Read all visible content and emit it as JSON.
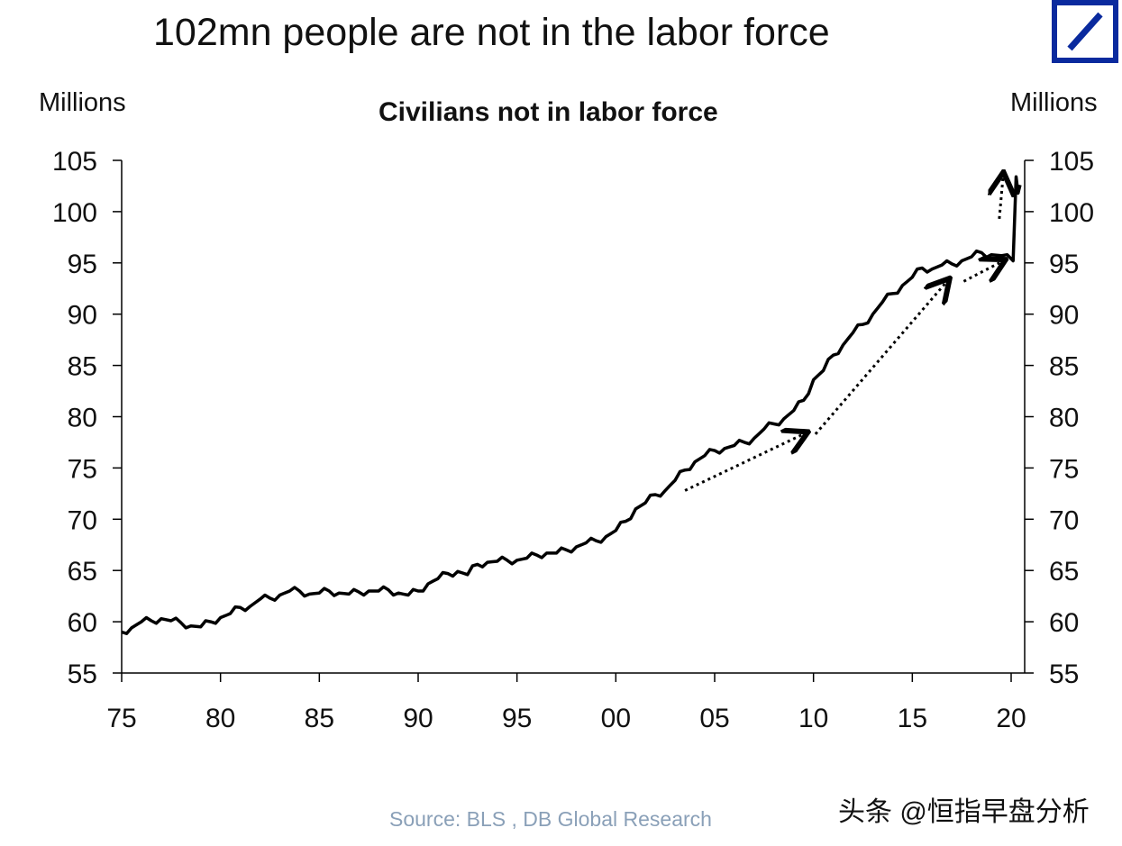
{
  "header": {
    "title": "102mn people are not in the labor force",
    "watermark": "头条 @恒指早盘分析"
  },
  "colors": {
    "line": "#000000",
    "logo": "#0a2a9e",
    "source": "#8aa0b8"
  },
  "chart_data": {
    "type": "line",
    "title": "Civilians not in labor force",
    "ylabel_left": "Millions",
    "ylabel_right": "Millions",
    "source": "Source: BLS , DB Global Research",
    "xlim": [
      1975,
      2020.6
    ],
    "ylim": [
      55,
      105
    ],
    "yticks": [
      55,
      60,
      65,
      70,
      75,
      80,
      85,
      90,
      95,
      100,
      105
    ],
    "xticks": [
      {
        "v": 1975,
        "label": "75"
      },
      {
        "v": 1980,
        "label": "80"
      },
      {
        "v": 1985,
        "label": "85"
      },
      {
        "v": 1990,
        "label": "90"
      },
      {
        "v": 1995,
        "label": "95"
      },
      {
        "v": 2000,
        "label": "00"
      },
      {
        "v": 2005,
        "label": "05"
      },
      {
        "v": 2010,
        "label": "10"
      },
      {
        "v": 2015,
        "label": "15"
      },
      {
        "v": 2020,
        "label": "20"
      }
    ],
    "grid": false,
    "series": [
      {
        "x": [
          1975,
          1975.5,
          1976,
          1976.5,
          1977,
          1977.5,
          1978,
          1978.5,
          1979,
          1979.5,
          1980,
          1980.5,
          1981,
          1981.5,
          1982,
          1982.5,
          1983,
          1983.5,
          1984,
          1984.5,
          1985,
          1985.5,
          1986,
          1986.5,
          1987,
          1987.5,
          1988,
          1988.5,
          1989,
          1989.5,
          1990,
          1990.5,
          1991,
          1991.5,
          1992,
          1992.5,
          1993,
          1993.5,
          1994,
          1994.5,
          1995,
          1995.5,
          1996,
          1996.5,
          1997,
          1997.5,
          1998,
          1998.5,
          1999,
          1999.5,
          2000,
          2000.5,
          2001,
          2001.5,
          2002,
          2002.5,
          2003,
          2003.5,
          2004,
          2004.5,
          2005,
          2005.5,
          2006,
          2006.5,
          2007,
          2007.5,
          2008,
          2008.5,
          2009,
          2009.5,
          2010,
          2010.5,
          2011,
          2011.5,
          2012,
          2012.5,
          2013,
          2013.5,
          2014,
          2014.5,
          2015,
          2015.5,
          2016,
          2016.5,
          2017,
          2017.5,
          2018,
          2018.5,
          2019,
          2019.5,
          2020.1,
          2020.25,
          2020.35,
          2020.45
        ],
        "values": [
          59,
          59.4,
          60,
          60.1,
          60.3,
          60.1,
          59.9,
          59.6,
          59.5,
          60,
          60.4,
          60.8,
          61.4,
          61.5,
          62.2,
          62.3,
          62.6,
          63,
          63,
          62.7,
          62.8,
          63,
          62.8,
          62.7,
          62.9,
          63,
          63,
          63.1,
          62.8,
          62.6,
          63,
          63.7,
          64.2,
          64.7,
          64.9,
          64.6,
          65.6,
          65.8,
          65.9,
          66,
          66,
          66.2,
          66.5,
          66.7,
          66.7,
          67,
          67.3,
          67.7,
          67.9,
          68.3,
          68.9,
          69.8,
          71,
          71.6,
          72.4,
          72.8,
          73.8,
          74.8,
          75.6,
          76.2,
          76.7,
          76.9,
          77.2,
          77.5,
          77.9,
          78.8,
          79.3,
          79.8,
          80.6,
          81.6,
          83.6,
          84.5,
          86,
          87,
          88.2,
          89,
          90,
          91.2,
          92,
          92.8,
          93.6,
          94.5,
          94.4,
          94.8,
          94.9,
          95.2,
          95.6,
          96,
          95.8,
          95.7,
          95.2,
          103.4,
          101.8,
          102.6
        ]
      }
    ],
    "annotations": [
      {
        "type": "dotted-arrow",
        "from": [
          2003.5,
          72.8
        ],
        "to": [
          2009.6,
          78.4
        ]
      },
      {
        "type": "dotted-arrow",
        "from": [
          2010.1,
          78.3
        ],
        "to": [
          2016.8,
          93.3
        ]
      },
      {
        "type": "dotted-arrow",
        "from": [
          2017.6,
          93.2
        ],
        "to": [
          2019.6,
          95.2
        ]
      },
      {
        "type": "dotted-arrow",
        "from": [
          2019.4,
          99.3
        ],
        "to": [
          2019.6,
          103.6
        ]
      }
    ]
  }
}
